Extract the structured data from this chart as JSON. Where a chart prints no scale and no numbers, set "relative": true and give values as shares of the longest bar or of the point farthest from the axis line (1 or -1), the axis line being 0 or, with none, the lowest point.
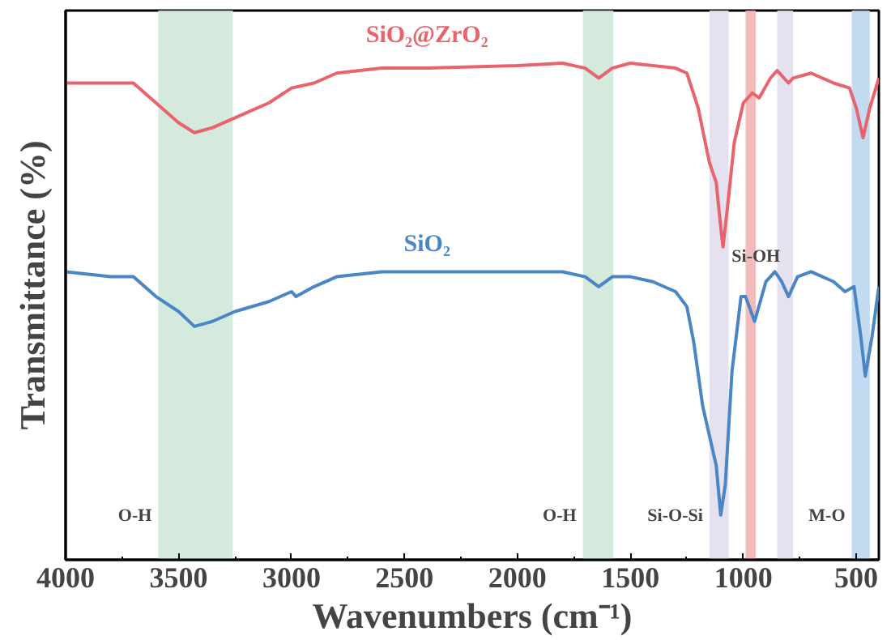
{
  "chart_data": {
    "type": "line",
    "relative": true,
    "xlabel": "Wavenumbers (cm⁻¹)",
    "ylabel": "Transmittance (%)",
    "xlim": [
      4000,
      400
    ],
    "xticks": [
      4000,
      3500,
      3000,
      2500,
      2000,
      1500,
      1000,
      500
    ],
    "grid": false,
    "legend": false,
    "tick_labels": "x",
    "line_style": "solid",
    "marker": "none",
    "x": [
      4000,
      3800,
      3700,
      3600,
      3500,
      3430,
      3350,
      3250,
      3100,
      3000,
      2900,
      2800,
      2600,
      2400,
      2000,
      1800,
      1700,
      1640,
      1580,
      1500,
      1400,
      1300,
      1250,
      1200,
      1150,
      1120,
      1100,
      1090,
      1070,
      1040,
      1000,
      960,
      930,
      880,
      850,
      800,
      780,
      700,
      600,
      530,
      500,
      470,
      440,
      400
    ],
    "series": [
      {
        "name": "SiO₂@ZrO₂",
        "color": "#e8636b",
        "values": [
          0.96,
          0.96,
          0.96,
          0.92,
          0.88,
          0.86,
          0.87,
          0.89,
          0.92,
          0.95,
          0.96,
          0.98,
          0.99,
          0.99,
          0.995,
          1.0,
          0.99,
          0.97,
          0.99,
          1.0,
          0.995,
          0.99,
          0.98,
          0.91,
          0.8,
          0.76,
          0.67,
          0.63,
          0.71,
          0.84,
          0.92,
          0.94,
          0.93,
          0.97,
          0.985,
          0.96,
          0.97,
          0.98,
          0.96,
          0.95,
          0.91,
          0.85,
          0.91,
          0.97
        ]
      },
      {
        "name": "SiO₂",
        "color": "#4a86c5",
        "x": [
          4000,
          3800,
          3700,
          3600,
          3500,
          3430,
          3350,
          3250,
          3100,
          3000,
          2980,
          2900,
          2800,
          2600,
          2400,
          2000,
          1800,
          1700,
          1640,
          1580,
          1500,
          1400,
          1300,
          1250,
          1220,
          1180,
          1150,
          1120,
          1100,
          1080,
          1050,
          1010,
          990,
          950,
          900,
          860,
          830,
          800,
          760,
          700,
          600,
          550,
          510,
          480,
          460,
          430,
          400
        ],
        "values": [
          0.58,
          0.57,
          0.57,
          0.53,
          0.5,
          0.47,
          0.48,
          0.5,
          0.52,
          0.54,
          0.53,
          0.55,
          0.57,
          0.58,
          0.58,
          0.58,
          0.58,
          0.57,
          0.55,
          0.57,
          0.57,
          0.56,
          0.54,
          0.51,
          0.44,
          0.31,
          0.25,
          0.19,
          0.09,
          0.15,
          0.38,
          0.53,
          0.53,
          0.48,
          0.56,
          0.58,
          0.56,
          0.53,
          0.57,
          0.58,
          0.56,
          0.54,
          0.55,
          0.45,
          0.37,
          0.45,
          0.55
        ]
      }
    ],
    "bands": [
      {
        "axis": "x",
        "from": 3590,
        "to": 3260,
        "color": "#cfe8d9",
        "label": "O-H"
      },
      {
        "axis": "x",
        "from": 1710,
        "to": 1575,
        "color": "#cfe8d9",
        "label": "O-H"
      },
      {
        "axis": "x",
        "from": 1150,
        "to": 1065,
        "color": "#e3deed",
        "label": "Si-O-Si"
      },
      {
        "axis": "x",
        "from": 990,
        "to": 945,
        "color": "#f2b5b5"
      },
      {
        "axis": "x",
        "from": 850,
        "to": 780,
        "color": "#e3deed"
      },
      {
        "axis": "x",
        "from": 520,
        "to": 440,
        "color": "#bcd7ee",
        "label": "M-O"
      }
    ],
    "annotations": [
      {
        "text": "Si-OH",
        "x": 944,
        "y": 0.61
      }
    ]
  }
}
